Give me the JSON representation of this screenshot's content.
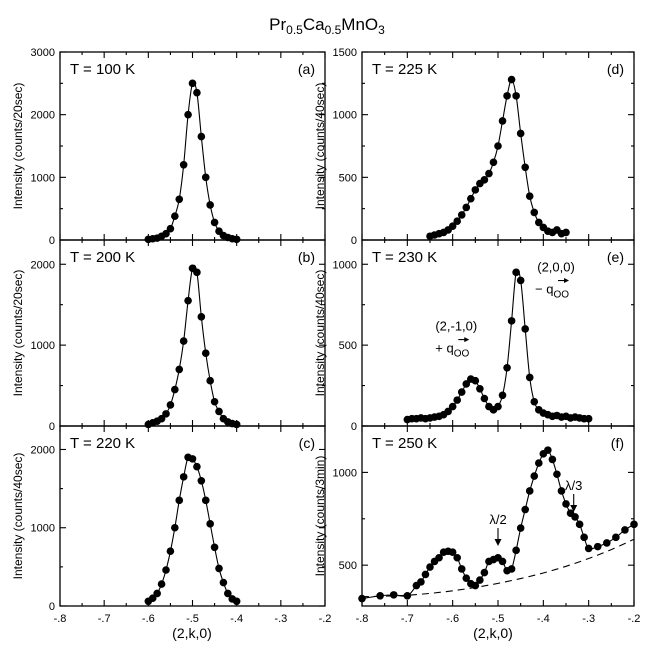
{
  "figure": {
    "title": "Pr0.5Ca0.5MnO3",
    "title_base": "Pr",
    "title_sub1": "0.5",
    "title_mid": "Ca",
    "title_sub2": "0.5",
    "title_end": "MnO",
    "title_sub3": "3",
    "xlabel": "(2,k,0)"
  },
  "chart_data": [
    {
      "type": "scatter",
      "panel": "(a)",
      "temperature": "T = 100 K",
      "ylabel": "Intensity (counts/20sec)",
      "xlim": [
        -0.8,
        -0.2
      ],
      "ylim": [
        0,
        3000
      ],
      "yticks": [
        0,
        1000,
        2000,
        3000
      ],
      "xticks": [
        -0.8,
        -0.7,
        -0.6,
        -0.5,
        -0.4,
        -0.3,
        -0.2
      ],
      "series": [
        {
          "x": [
            -0.6,
            -0.59,
            -0.58,
            -0.57,
            -0.56,
            -0.55,
            -0.54,
            -0.53,
            -0.52,
            -0.51,
            -0.5,
            -0.49,
            -0.48,
            -0.47,
            -0.46,
            -0.45,
            -0.44,
            -0.43,
            -0.42,
            -0.41,
            -0.4
          ],
          "y": [
            10,
            20,
            30,
            60,
            100,
            180,
            380,
            650,
            1200,
            2000,
            2500,
            2350,
            1650,
            1000,
            560,
            280,
            140,
            70,
            40,
            20,
            10
          ]
        }
      ]
    },
    {
      "type": "scatter",
      "panel": "(b)",
      "temperature": "T = 200 K",
      "ylabel": "Intensity (counts/20sec)",
      "xlim": [
        -0.8,
        -0.2
      ],
      "ylim": [
        0,
        2300
      ],
      "yticks": [
        0,
        1000,
        2000
      ],
      "xticks": [
        -0.8,
        -0.7,
        -0.6,
        -0.5,
        -0.4,
        -0.3,
        -0.2
      ],
      "series": [
        {
          "x": [
            -0.6,
            -0.59,
            -0.58,
            -0.57,
            -0.56,
            -0.55,
            -0.54,
            -0.53,
            -0.52,
            -0.51,
            -0.5,
            -0.49,
            -0.48,
            -0.47,
            -0.46,
            -0.45,
            -0.44,
            -0.43,
            -0.42,
            -0.41,
            -0.4
          ],
          "y": [
            20,
            40,
            60,
            90,
            150,
            260,
            450,
            700,
            1050,
            1550,
            1950,
            1900,
            1350,
            900,
            560,
            300,
            180,
            90,
            50,
            30,
            20
          ]
        }
      ]
    },
    {
      "type": "scatter",
      "panel": "(c)",
      "temperature": "T = 220 K",
      "ylabel": "Intensity (counts/40sec)",
      "xlim": [
        -0.8,
        -0.2
      ],
      "ylim": [
        0,
        2300
      ],
      "yticks": [
        0,
        1000,
        2000
      ],
      "xticks": [
        -0.8,
        -0.7,
        -0.6,
        -0.5,
        -0.4,
        -0.3,
        -0.2
      ],
      "series": [
        {
          "x": [
            -0.6,
            -0.59,
            -0.58,
            -0.57,
            -0.56,
            -0.55,
            -0.54,
            -0.53,
            -0.52,
            -0.51,
            -0.5,
            -0.49,
            -0.48,
            -0.47,
            -0.46,
            -0.45,
            -0.44,
            -0.43,
            -0.42,
            -0.41,
            -0.4
          ],
          "y": [
            60,
            100,
            160,
            280,
            460,
            700,
            1000,
            1350,
            1650,
            1900,
            1880,
            1780,
            1600,
            1350,
            1050,
            750,
            480,
            300,
            160,
            90,
            60
          ]
        }
      ]
    },
    {
      "type": "scatter",
      "panel": "(d)",
      "temperature": "T = 225 K",
      "ylabel": "Intensity (counts/40sec)",
      "xlim": [
        -0.8,
        -0.2
      ],
      "ylim": [
        0,
        1500
      ],
      "yticks": [
        0,
        500,
        1000,
        1500
      ],
      "xticks": [
        -0.8,
        -0.7,
        -0.6,
        -0.5,
        -0.4,
        -0.3,
        -0.2
      ],
      "series": [
        {
          "x": [
            -0.65,
            -0.64,
            -0.63,
            -0.62,
            -0.61,
            -0.6,
            -0.59,
            -0.58,
            -0.57,
            -0.56,
            -0.55,
            -0.54,
            -0.53,
            -0.52,
            -0.51,
            -0.5,
            -0.49,
            -0.48,
            -0.47,
            -0.46,
            -0.45,
            -0.44,
            -0.43,
            -0.42,
            -0.41,
            -0.4,
            -0.39,
            -0.38,
            -0.37,
            -0.36,
            -0.35
          ],
          "y": [
            30,
            40,
            50,
            60,
            80,
            110,
            150,
            200,
            260,
            330,
            400,
            450,
            480,
            530,
            620,
            750,
            950,
            1150,
            1280,
            1150,
            850,
            580,
            350,
            220,
            140,
            100,
            70,
            60,
            80,
            50,
            60
          ]
        }
      ]
    },
    {
      "type": "scatter",
      "panel": "(e)",
      "temperature": "T = 230 K",
      "ylabel": "Intensity (counts/40sec)",
      "xlim": [
        -0.8,
        -0.2
      ],
      "ylim": [
        0,
        1150
      ],
      "yticks": [
        0,
        500,
        1000
      ],
      "xticks": [
        -0.8,
        -0.7,
        -0.6,
        -0.5,
        -0.4,
        -0.3,
        -0.2
      ],
      "annotations": [
        {
          "line1": "(2,-1,0)",
          "line2": "+ q",
          "subscript": "OO"
        },
        {
          "line1": "(2,0,0)",
          "line2": "− q",
          "subscript": "OO"
        }
      ],
      "series": [
        {
          "x": [
            -0.7,
            -0.69,
            -0.68,
            -0.67,
            -0.66,
            -0.65,
            -0.64,
            -0.63,
            -0.62,
            -0.61,
            -0.6,
            -0.59,
            -0.58,
            -0.57,
            -0.56,
            -0.55,
            -0.54,
            -0.53,
            -0.52,
            -0.51,
            -0.5,
            -0.49,
            -0.48,
            -0.47,
            -0.46,
            -0.45,
            -0.44,
            -0.43,
            -0.42,
            -0.41,
            -0.4,
            -0.39,
            -0.38,
            -0.37,
            -0.36,
            -0.35,
            -0.34,
            -0.33,
            -0.32,
            -0.31,
            -0.3
          ],
          "y": [
            40,
            45,
            45,
            50,
            45,
            50,
            55,
            60,
            70,
            90,
            120,
            160,
            210,
            260,
            290,
            280,
            230,
            170,
            120,
            100,
            120,
            190,
            360,
            650,
            950,
            900,
            600,
            300,
            150,
            100,
            80,
            70,
            60,
            65,
            55,
            60,
            50,
            55,
            50,
            45,
            45
          ]
        }
      ]
    },
    {
      "type": "scatter",
      "panel": "(f)",
      "temperature": "T = 250 K",
      "ylabel": "Intensity (counts/3min)",
      "xlim": [
        -0.8,
        -0.2
      ],
      "ylim": [
        280,
        1250
      ],
      "yticks": [
        500,
        1000
      ],
      "xticks": [
        -0.8,
        -0.7,
        -0.6,
        -0.5,
        -0.4,
        -0.3,
        -0.2
      ],
      "annotations": [
        {
          "text": "λ/2",
          "x": -0.5
        },
        {
          "text": "λ/3",
          "x": -0.333
        }
      ],
      "series": [
        {
          "x": [
            -0.8,
            -0.76,
            -0.73,
            -0.7,
            -0.68,
            -0.67,
            -0.66,
            -0.65,
            -0.64,
            -0.63,
            -0.62,
            -0.61,
            -0.6,
            -0.59,
            -0.58,
            -0.57,
            -0.56,
            -0.55,
            -0.54,
            -0.53,
            -0.52,
            -0.51,
            -0.5,
            -0.49,
            -0.48,
            -0.47,
            -0.46,
            -0.45,
            -0.44,
            -0.43,
            -0.42,
            -0.41,
            -0.4,
            -0.39,
            -0.38,
            -0.37,
            -0.36,
            -0.35,
            -0.34,
            -0.33,
            -0.32,
            -0.31,
            -0.3,
            -0.28,
            -0.26,
            -0.24,
            -0.22,
            -0.2
          ],
          "y": [
            320,
            335,
            340,
            335,
            390,
            410,
            450,
            490,
            520,
            540,
            570,
            575,
            570,
            540,
            480,
            430,
            400,
            390,
            420,
            460,
            520,
            530,
            540,
            520,
            470,
            480,
            580,
            700,
            800,
            900,
            980,
            1050,
            1100,
            1120,
            1070,
            990,
            900,
            830,
            780,
            760,
            720,
            650,
            590,
            600,
            620,
            650,
            690,
            720
          ]
        },
        {
          "style": "dashed",
          "x": [
            -0.8,
            -0.75,
            -0.7,
            -0.65,
            -0.6,
            -0.55,
            -0.5,
            -0.45,
            -0.4,
            -0.35,
            -0.3,
            -0.25,
            -0.2
          ],
          "y": [
            330,
            333,
            338,
            348,
            362,
            380,
            402,
            428,
            458,
            494,
            536,
            584,
            640
          ]
        }
      ]
    }
  ]
}
